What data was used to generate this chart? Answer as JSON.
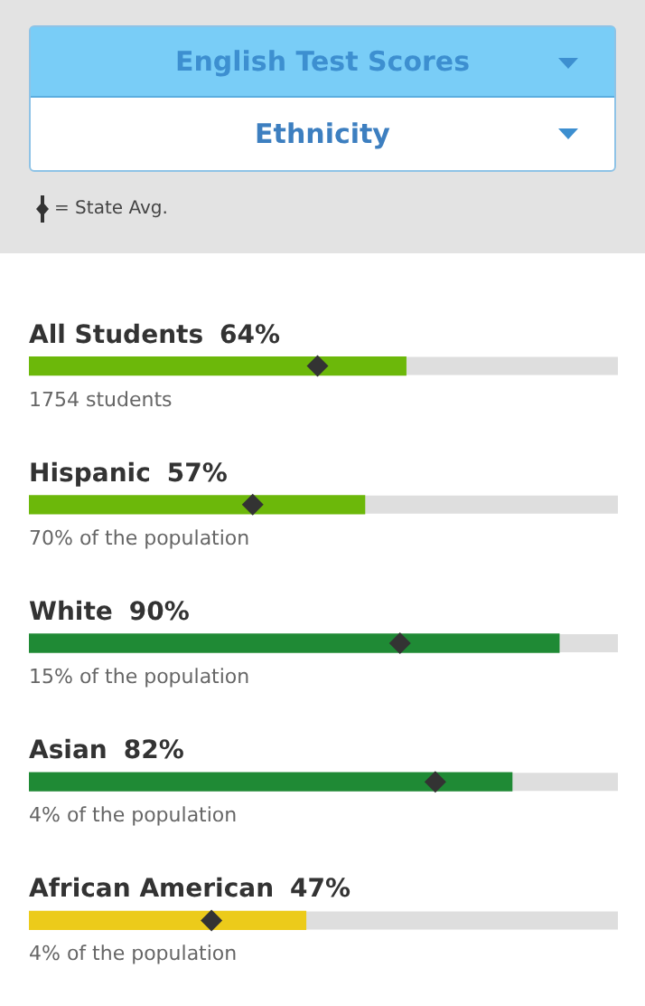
{
  "chart_data": {
    "type": "bar",
    "orientation": "horizontal",
    "title": "English Test Scores",
    "subtitle": "Ethnicity",
    "categories": [
      "All Students",
      "Hispanic",
      "White",
      "Asian",
      "African American"
    ],
    "xlim": [
      0,
      100
    ],
    "tick_labels": false,
    "legend": "top left",
    "series": [
      {
        "values": [
          64,
          57,
          90,
          82,
          47
        ],
        "colors": [
          "#6cb80a",
          "#6cb80a",
          "#1f8a35",
          "#1f8a35",
          "#eccb1a"
        ],
        "value_labels": [
          "64%",
          "57%",
          "90%",
          "82%",
          "47%"
        ]
      },
      {
        "name": "= State Avg.",
        "type": "scatter",
        "color": "#333333",
        "marker": "diamond",
        "values": [
          49,
          38,
          63,
          69,
          31
        ]
      }
    ],
    "annotations": [
      "1754 students",
      "70% of the population",
      "15% of the population",
      "4% of the population",
      "4% of the population"
    ]
  }
}
